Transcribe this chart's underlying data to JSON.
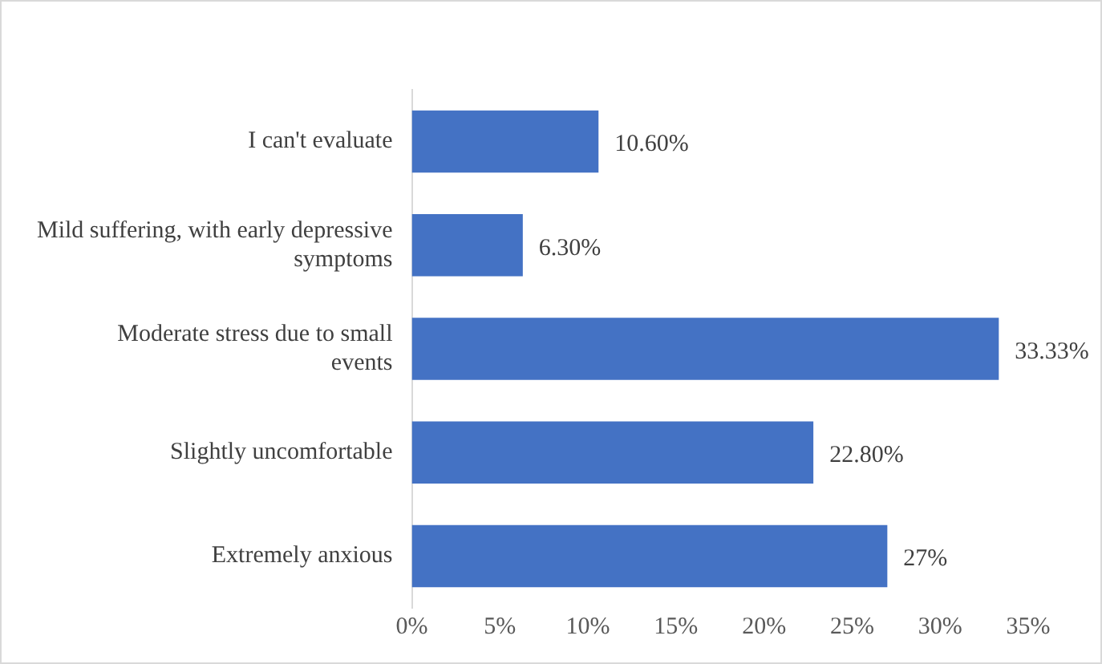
{
  "chart_data": {
    "type": "bar",
    "orientation": "horizontal",
    "categories": [
      "I can't evaluate",
      "Mild suffering, with early depressive symptoms",
      "Moderate stress due to small events",
      "Slightly uncomfortable",
      "Extremely anxious"
    ],
    "values": [
      10.6,
      6.3,
      33.33,
      22.8,
      27
    ],
    "value_labels": [
      "10.60%",
      "6.30%",
      "33.33%",
      "22.80%",
      "27%"
    ],
    "color": "#4472c4",
    "xlim": [
      0,
      35
    ],
    "xticks": [
      {
        "value": 0,
        "label": "0%"
      },
      {
        "value": 5,
        "label": "5%"
      },
      {
        "value": 10,
        "label": "10%"
      },
      {
        "value": 15,
        "label": "15%"
      },
      {
        "value": 20,
        "label": "20%"
      },
      {
        "value": 25,
        "label": "25%"
      },
      {
        "value": 30,
        "label": "30%"
      },
      {
        "value": 35,
        "label": "35%"
      }
    ],
    "grid": false,
    "legend": false
  }
}
